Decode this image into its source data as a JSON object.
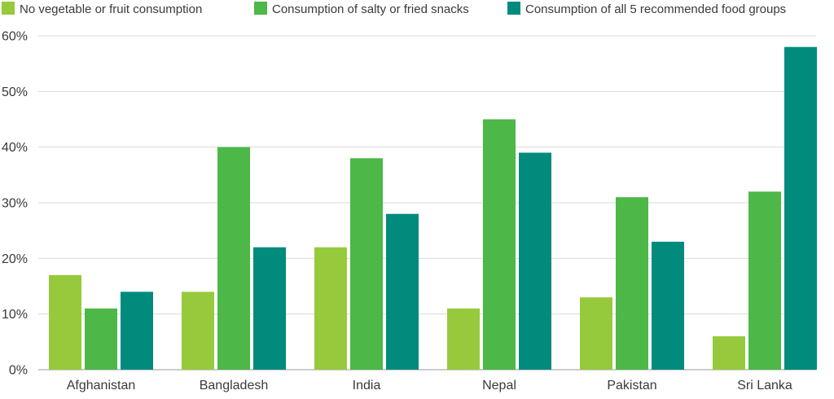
{
  "chart_data": {
    "type": "bar",
    "title": "",
    "xlabel": "",
    "ylabel": "",
    "categories": [
      "Afghanistan",
      "Bangladesh",
      "India",
      "Nepal",
      "Pakistan",
      "Sri Lanka"
    ],
    "series": [
      {
        "name": "No vegetable or fruit consumption",
        "color": "#97c93d",
        "values": [
          17,
          14,
          22,
          11,
          13,
          6
        ]
      },
      {
        "name": "Consumption of salty or fried snacks",
        "color": "#4db748",
        "values": [
          11,
          40,
          38,
          45,
          31,
          32
        ]
      },
      {
        "name": "Consumption of all 5 recommended food groups",
        "color": "#008b7d",
        "values": [
          14,
          22,
          28,
          39,
          23,
          58
        ]
      }
    ],
    "ylim": [
      0,
      60
    ],
    "yticks": [
      0,
      10,
      20,
      30,
      40,
      50,
      60
    ],
    "ytick_labels": [
      "0%",
      "10%",
      "20%",
      "30%",
      "40%",
      "50%",
      "60%"
    ],
    "grid": true,
    "legend_position": "top-left"
  }
}
